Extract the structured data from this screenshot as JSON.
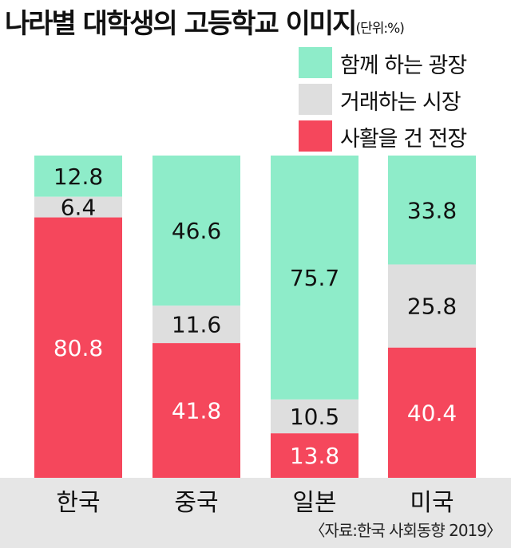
{
  "title": "나라별 대학생의 고등학교 이미지",
  "unit": "(단위:%)",
  "source": "〈자료:한국 사회동향 2019〉",
  "colors": {
    "series0": "#8eecc9",
    "series1": "#dedede",
    "series2": "#f5475c",
    "band": "#e6e6e6",
    "dark_label": "#111111",
    "light_label": "#ffffff"
  },
  "chart_data": {
    "type": "bar",
    "stacked": true,
    "categories": [
      "한국",
      "중국",
      "일본",
      "미국"
    ],
    "series": [
      {
        "name": "함께 하는 광장",
        "values": [
          12.8,
          46.6,
          75.7,
          33.8
        ]
      },
      {
        "name": "거래하는 시장",
        "values": [
          6.4,
          11.6,
          10.5,
          25.8
        ]
      },
      {
        "name": "사활을 건 전장",
        "values": [
          80.8,
          41.8,
          13.8,
          40.4
        ]
      }
    ],
    "value_labels": [
      [
        "12.8",
        "46.6",
        "75.7",
        "33.8"
      ],
      [
        "6.4",
        "11.6",
        "10.5",
        "25.8"
      ],
      [
        "80.8",
        "41.8",
        "13.8",
        "40.4"
      ]
    ],
    "ylim": [
      0,
      100
    ],
    "legend_position": "top-right",
    "grid": false
  }
}
